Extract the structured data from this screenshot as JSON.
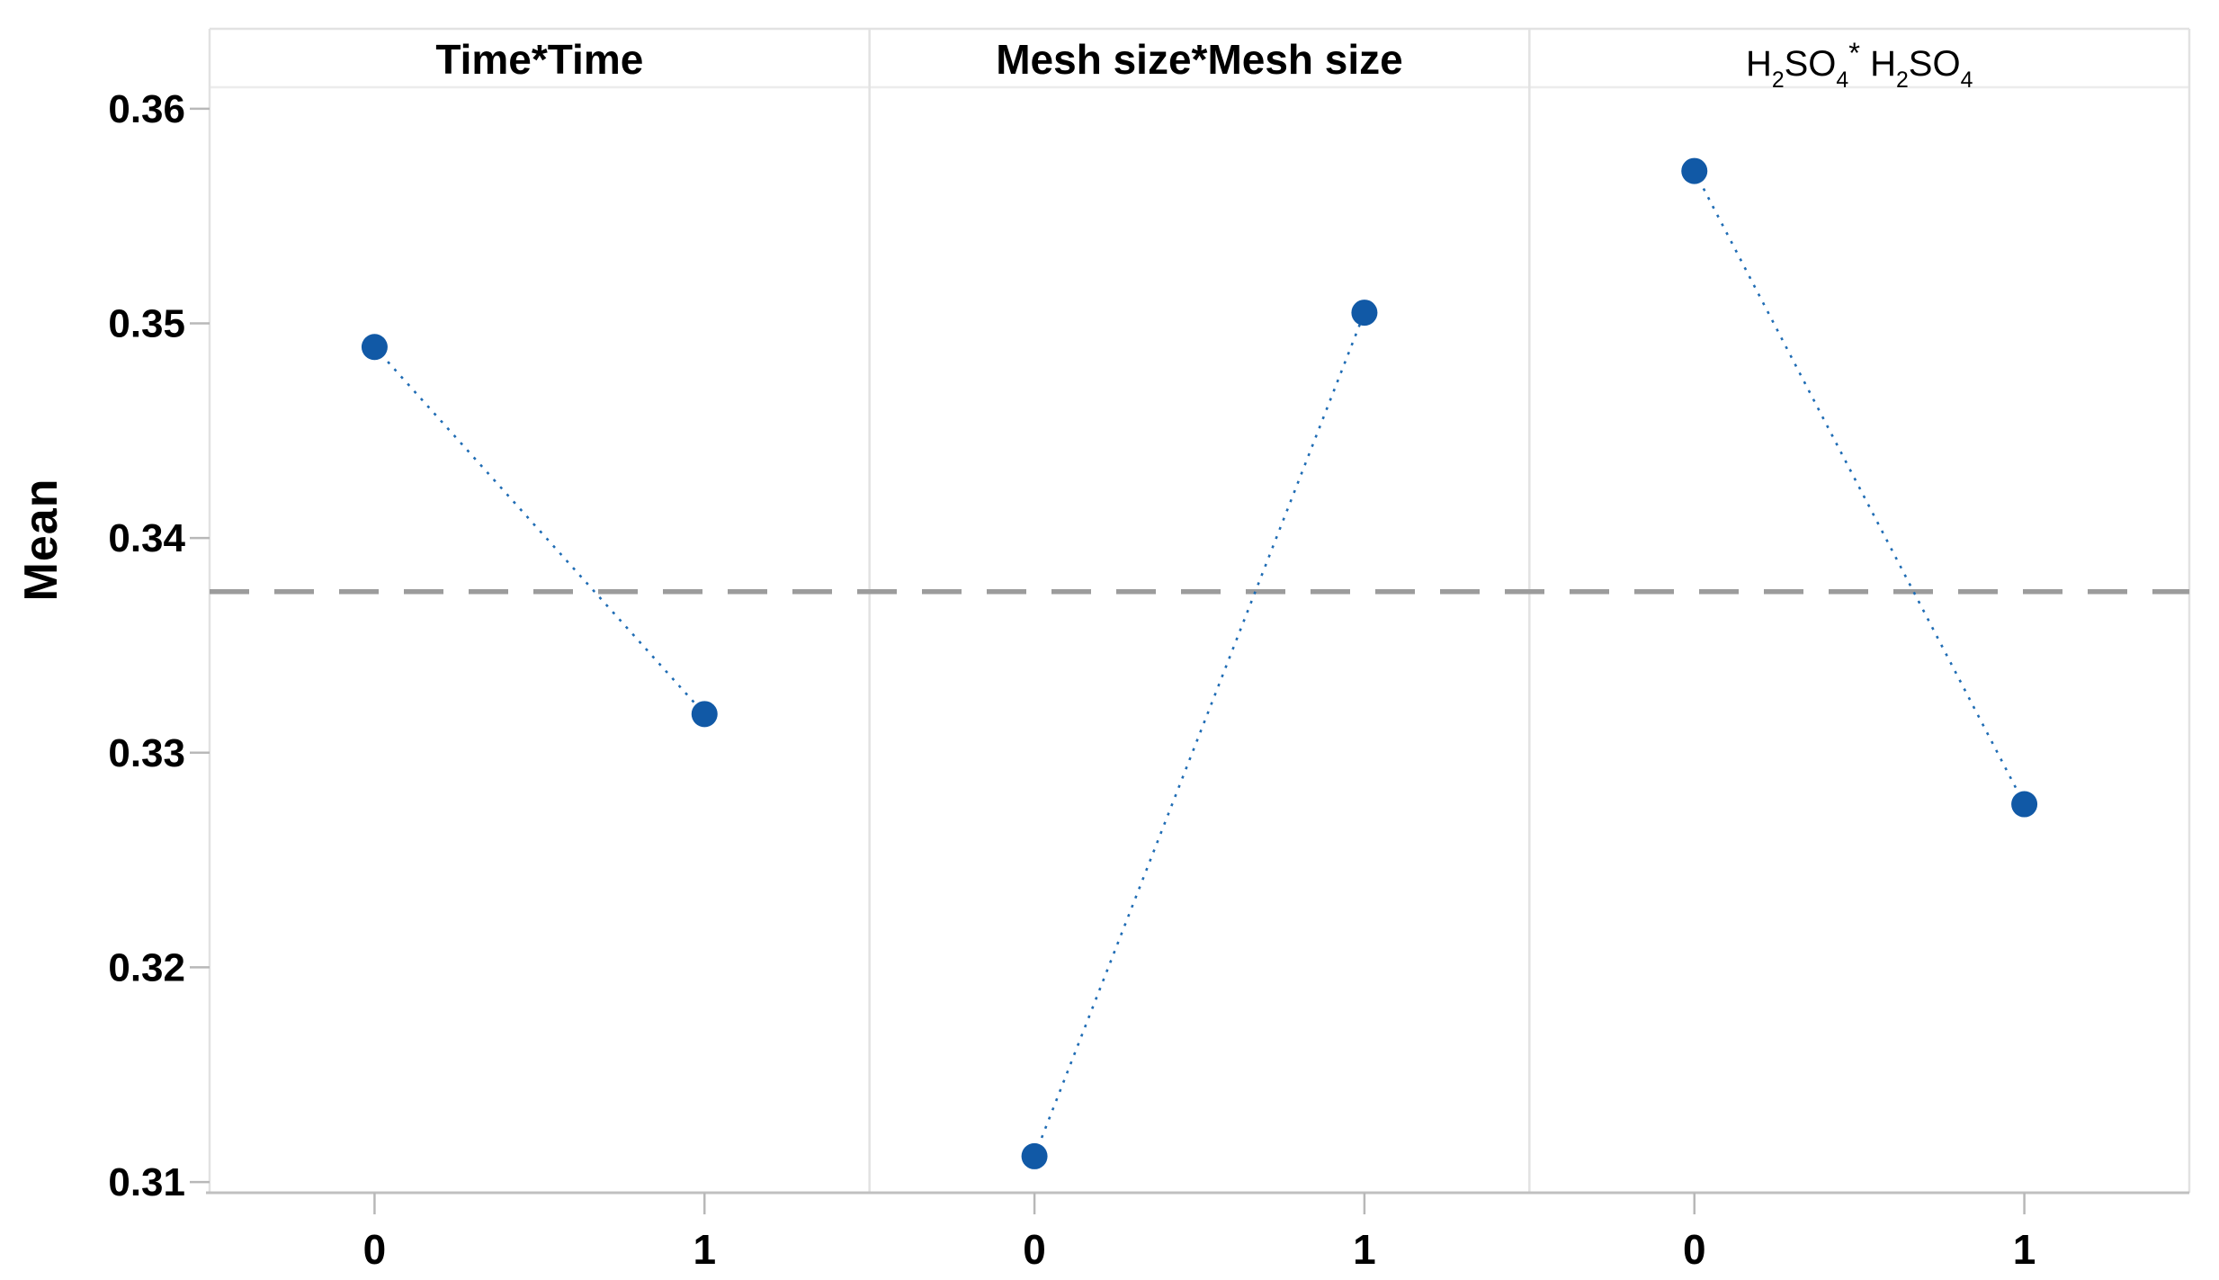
{
  "chart_data": {
    "type": "line",
    "title": "",
    "subtitle": "",
    "xlabel": "",
    "ylabel": "Mean",
    "grid": false,
    "legend": false,
    "ylim": [
      0.3095,
      0.361
    ],
    "y_ticks": [
      0.36,
      0.35,
      0.34,
      0.33,
      0.32,
      0.31
    ],
    "y_tick_labels": [
      "0.36",
      "0.35",
      "0.34",
      "0.33",
      "0.32",
      "0.31"
    ],
    "x_categories": [
      "0",
      "1"
    ],
    "reference_line": {
      "value": 0.3375,
      "style": "dashed"
    },
    "panels": [
      {
        "title": "Time*Time",
        "title_segments": [
          {
            "text": "Time*Time",
            "style": "normal"
          }
        ],
        "x": [
          "0",
          "1"
        ],
        "values": [
          0.3489,
          0.3318
        ]
      },
      {
        "title": "Mesh size*Mesh size",
        "title_segments": [
          {
            "text": "Mesh size*Mesh size",
            "style": "normal"
          }
        ],
        "x": [
          "0",
          "1"
        ],
        "values": [
          0.3112,
          0.3505
        ]
      },
      {
        "title": "H2SO4* H2SO4",
        "title_segments": [
          {
            "text": "H",
            "style": "normal"
          },
          {
            "text": "2",
            "style": "sub"
          },
          {
            "text": "SO",
            "style": "normal"
          },
          {
            "text": "4",
            "style": "sub"
          },
          {
            "text": "*",
            "style": "sup"
          },
          {
            "text": " H",
            "style": "normal"
          },
          {
            "text": "2",
            "style": "sub"
          },
          {
            "text": "SO",
            "style": "normal"
          },
          {
            "text": "4",
            "style": "sub"
          }
        ],
        "x": [
          "0",
          "1"
        ],
        "values": [
          0.3571,
          0.3276
        ]
      }
    ],
    "colors": {
      "marker": "#1159a6",
      "connector": "#1f6cb4",
      "reference": "#9c9c9c",
      "border": "#e2e2e2",
      "separator": "#ececec",
      "axis": "#c0c0c0",
      "tick": "#b8b8b8",
      "text": "#000000"
    }
  }
}
